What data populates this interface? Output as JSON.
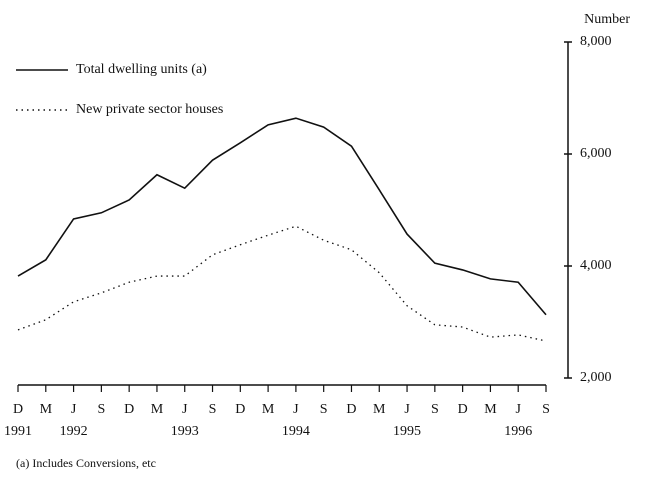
{
  "chart_data": {
    "type": "line",
    "y_axis_label": "Number",
    "footnote": "(a) Includes Conversions, etc",
    "categories": [
      "D",
      "M",
      "J",
      "S",
      "D",
      "M",
      "J",
      "S",
      "D",
      "M",
      "J",
      "S",
      "D",
      "M",
      "J",
      "S",
      "D",
      "M",
      "J",
      "S"
    ],
    "years": [
      "1991",
      null,
      "1992",
      null,
      null,
      null,
      "1993",
      null,
      null,
      null,
      "1994",
      null,
      null,
      null,
      "1995",
      null,
      null,
      null,
      "1996",
      null
    ],
    "series": [
      {
        "name": "Total dwelling units (a)",
        "color": "#111111",
        "style": "solid",
        "values": [
          3820,
          4110,
          4840,
          4950,
          5180,
          5630,
          5390,
          5890,
          6200,
          6520,
          6640,
          6480,
          6140,
          5360,
          4570,
          4050,
          3930,
          3770,
          3710,
          3130
        ]
      },
      {
        "name": "New private sector houses",
        "color": "#111111",
        "style": "dotted",
        "values": [
          2860,
          3040,
          3360,
          3520,
          3710,
          3820,
          3820,
          4200,
          4380,
          4550,
          4710,
          4460,
          4290,
          3880,
          3290,
          2950,
          2910,
          2730,
          2770,
          2660
        ]
      }
    ],
    "ylim": [
      2000,
      8000
    ],
    "yticks": [
      {
        "value": 2000,
        "label": "2,000"
      },
      {
        "value": 4000,
        "label": "4,000"
      },
      {
        "value": 6000,
        "label": "6,000"
      },
      {
        "value": 8000,
        "label": "8,000"
      }
    ]
  }
}
